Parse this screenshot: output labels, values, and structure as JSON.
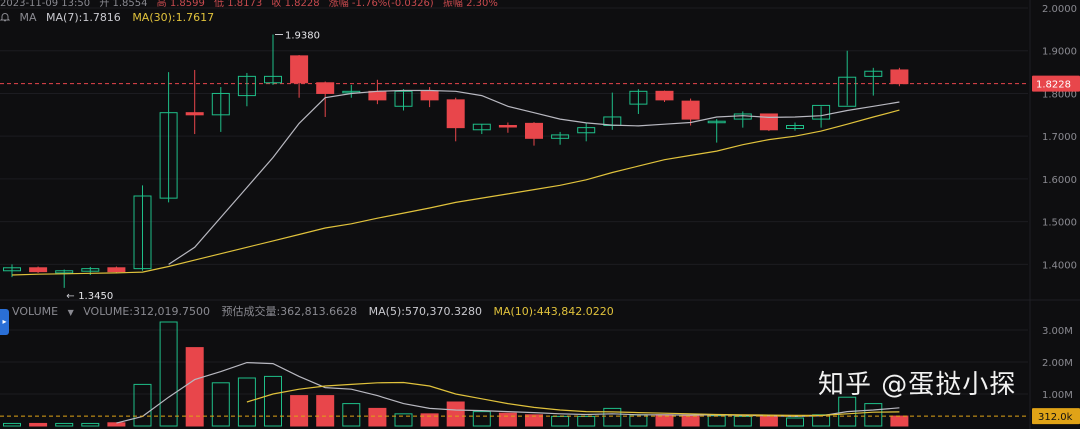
{
  "header": {
    "date_time": "2023-11-09 13:50",
    "open": "开 1.8554",
    "high": "高 1.8599",
    "low": "低 1.8173",
    "close": "收 1.8228",
    "change": "涨幅 -1.76%(-0.0326)",
    "amplitude": "振幅 2.30%"
  },
  "price_legend": {
    "bell_icon": "bell-icon",
    "indicator": "MA",
    "ma7": "MA(7):1.7816",
    "ma30": "MA(30):1.7617"
  },
  "volume_legend": {
    "indicator": "VOLUME",
    "volume": "VOLUME:312,019.7500",
    "est_volume": "预估成交量:362,813.6628",
    "ma5": "MA(5):570,370.3280",
    "ma10": "MA(10):443,842.0220"
  },
  "annotations": {
    "high_label": "1.9380",
    "low_label": "1.3450",
    "current_price_tag": "1.8228",
    "current_volume_tag": "312.0k"
  },
  "watermark": "知乎 @蛋挞小探",
  "colors": {
    "up": "#1fbf89",
    "down": "#e8464b",
    "ma7": "#b8b8c0",
    "ma30": "#e0c23c",
    "grid": "#1c1c21",
    "price_tag": "#e8464b",
    "volume_tag": "#e0a317"
  },
  "chart_data": [
    {
      "type": "candlestick",
      "title": "",
      "ylim": [
        1.34,
        2.0
      ],
      "y_ticks": [
        "2.0000",
        "1.9000",
        "1.8000",
        "1.7000",
        "1.6000",
        "1.5000",
        "1.4000"
      ],
      "candles": [
        {
          "o": 1.385,
          "h": 1.4,
          "l": 1.37,
          "c": 1.392
        },
        {
          "o": 1.392,
          "h": 1.395,
          "l": 1.38,
          "c": 1.383
        },
        {
          "o": 1.38,
          "h": 1.388,
          "l": 1.345,
          "c": 1.385
        },
        {
          "o": 1.384,
          "h": 1.394,
          "l": 1.375,
          "c": 1.39
        },
        {
          "o": 1.392,
          "h": 1.395,
          "l": 1.38,
          "c": 1.383
        },
        {
          "o": 1.39,
          "h": 1.585,
          "l": 1.385,
          "c": 1.56
        },
        {
          "o": 1.555,
          "h": 1.85,
          "l": 1.545,
          "c": 1.755
        },
        {
          "o": 1.755,
          "h": 1.855,
          "l": 1.705,
          "c": 1.75
        },
        {
          "o": 1.75,
          "h": 1.815,
          "l": 1.71,
          "c": 1.8
        },
        {
          "o": 1.795,
          "h": 1.848,
          "l": 1.77,
          "c": 1.84
        },
        {
          "o": 1.825,
          "h": 1.938,
          "l": 1.82,
          "c": 1.84
        },
        {
          "o": 1.888,
          "h": 1.89,
          "l": 1.79,
          "c": 1.825
        },
        {
          "o": 1.825,
          "h": 1.828,
          "l": 1.745,
          "c": 1.8
        },
        {
          "o": 1.805,
          "h": 1.82,
          "l": 1.79,
          "c": 1.805
        },
        {
          "o": 1.805,
          "h": 1.832,
          "l": 1.775,
          "c": 1.785
        },
        {
          "o": 1.77,
          "h": 1.81,
          "l": 1.76,
          "c": 1.805
        },
        {
          "o": 1.805,
          "h": 1.815,
          "l": 1.768,
          "c": 1.785
        },
        {
          "o": 1.785,
          "h": 1.79,
          "l": 1.688,
          "c": 1.72
        },
        {
          "o": 1.715,
          "h": 1.728,
          "l": 1.705,
          "c": 1.728
        },
        {
          "o": 1.725,
          "h": 1.732,
          "l": 1.708,
          "c": 1.722
        },
        {
          "o": 1.73,
          "h": 1.733,
          "l": 1.678,
          "c": 1.695
        },
        {
          "o": 1.695,
          "h": 1.71,
          "l": 1.68,
          "c": 1.703
        },
        {
          "o": 1.708,
          "h": 1.73,
          "l": 1.688,
          "c": 1.72
        },
        {
          "o": 1.725,
          "h": 1.802,
          "l": 1.715,
          "c": 1.745
        },
        {
          "o": 1.775,
          "h": 1.81,
          "l": 1.752,
          "c": 1.805
        },
        {
          "o": 1.805,
          "h": 1.807,
          "l": 1.78,
          "c": 1.785
        },
        {
          "o": 1.782,
          "h": 1.788,
          "l": 1.725,
          "c": 1.74
        },
        {
          "o": 1.732,
          "h": 1.74,
          "l": 1.685,
          "c": 1.735
        },
        {
          "o": 1.74,
          "h": 1.758,
          "l": 1.72,
          "c": 1.752
        },
        {
          "o": 1.752,
          "h": 1.752,
          "l": 1.712,
          "c": 1.715
        },
        {
          "o": 1.718,
          "h": 1.732,
          "l": 1.713,
          "c": 1.725
        },
        {
          "o": 1.74,
          "h": 1.77,
          "l": 1.72,
          "c": 1.772
        },
        {
          "o": 1.77,
          "h": 1.9,
          "l": 1.772,
          "c": 1.838
        },
        {
          "o": 1.84,
          "h": 1.86,
          "l": 1.795,
          "c": 1.852
        },
        {
          "o": 1.855,
          "h": 1.86,
          "l": 1.817,
          "c": 1.823
        }
      ],
      "ma7": [
        null,
        null,
        null,
        null,
        null,
        null,
        1.4,
        1.44,
        1.51,
        1.58,
        1.65,
        1.73,
        1.79,
        1.8,
        1.805,
        1.807,
        1.807,
        1.805,
        1.795,
        1.77,
        1.755,
        1.74,
        1.731,
        1.726,
        1.724,
        1.728,
        1.732,
        1.745,
        1.748,
        1.744,
        1.745,
        1.748,
        1.76,
        1.77,
        1.78
      ],
      "ma30": [
        1.375,
        1.377,
        1.378,
        1.379,
        1.38,
        1.382,
        1.395,
        1.41,
        1.425,
        1.44,
        1.455,
        1.47,
        1.485,
        1.495,
        1.508,
        1.52,
        1.532,
        1.545,
        1.555,
        1.565,
        1.575,
        1.585,
        1.598,
        1.615,
        1.63,
        1.645,
        1.655,
        1.665,
        1.68,
        1.692,
        1.7,
        1.712,
        1.728,
        1.745,
        1.761
      ]
    },
    {
      "type": "bar",
      "title": "",
      "ylim": [
        0,
        3.25
      ],
      "y_ticks": [
        "3.00M",
        "2.00M",
        "1.00M"
      ],
      "volume_millions": [
        0.08,
        0.08,
        0.08,
        0.08,
        0.1,
        1.3,
        3.25,
        2.45,
        1.35,
        1.5,
        1.55,
        0.95,
        0.95,
        0.7,
        0.55,
        0.38,
        0.38,
        0.75,
        0.45,
        0.4,
        0.35,
        0.3,
        0.3,
        0.55,
        0.35,
        0.35,
        0.35,
        0.32,
        0.3,
        0.32,
        0.25,
        0.35,
        0.9,
        0.7,
        0.31
      ],
      "ma5": [
        null,
        null,
        null,
        null,
        0.09,
        0.3,
        0.9,
        1.45,
        1.7,
        1.98,
        1.95,
        1.55,
        1.2,
        1.15,
        0.95,
        0.7,
        0.55,
        0.5,
        0.48,
        0.45,
        0.42,
        0.38,
        0.36,
        0.38,
        0.35,
        0.35,
        0.34,
        0.35,
        0.33,
        0.32,
        0.3,
        0.32,
        0.45,
        0.5,
        0.57
      ],
      "ma10": [
        null,
        null,
        null,
        null,
        null,
        null,
        null,
        null,
        null,
        0.75,
        1.0,
        1.15,
        1.25,
        1.3,
        1.35,
        1.36,
        1.25,
        1.0,
        0.85,
        0.7,
        0.58,
        0.5,
        0.45,
        0.44,
        0.42,
        0.4,
        0.38,
        0.36,
        0.35,
        0.34,
        0.33,
        0.33,
        0.38,
        0.43,
        0.44
      ]
    }
  ]
}
